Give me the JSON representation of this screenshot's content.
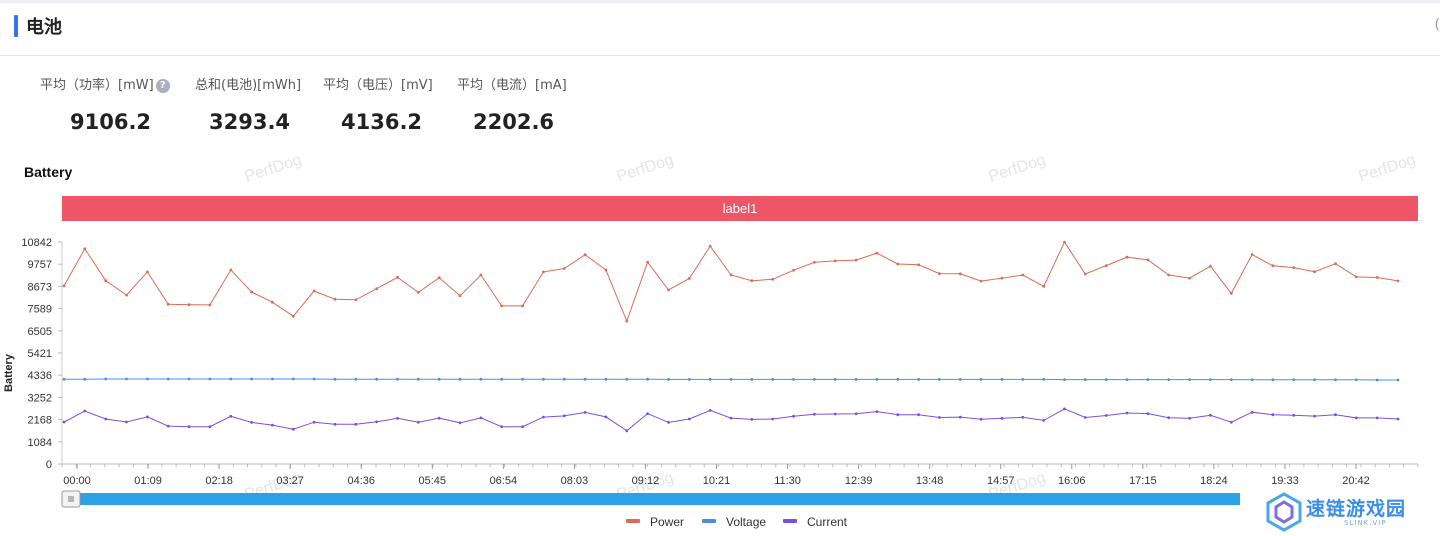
{
  "page": {
    "title": "电池"
  },
  "stats": [
    {
      "label": "平均（功率）[mW]",
      "value": "9106.2",
      "has_help": true
    },
    {
      "label": "总和(电池)[mWh]",
      "value": "3293.4"
    },
    {
      "label": "平均（电压）[mV]",
      "value": "4136.2"
    },
    {
      "label": "平均（电流）[mA]",
      "value": "2202.6"
    }
  ],
  "section_title": "Battery",
  "watermark": "PerfDog",
  "logo": {
    "name": "速链游戏园",
    "sub": "SLINK.VIP"
  },
  "chart_data": {
    "type": "line",
    "title": "",
    "ylabel": "Battery",
    "xlabel": "",
    "label_band": "label1",
    "ylim": [
      0,
      10842
    ],
    "yticks": [
      0,
      1084,
      2168,
      3252,
      4336,
      5421,
      6505,
      7589,
      8673,
      9757,
      10842
    ],
    "xticks": [
      "00:00",
      "01:09",
      "02:18",
      "03:27",
      "04:36",
      "05:45",
      "06:54",
      "08:03",
      "09:12",
      "10:21",
      "11:30",
      "12:39",
      "13:48",
      "14:57",
      "16:06",
      "17:15",
      "18:24",
      "19:33",
      "20:42"
    ],
    "legend_position": "bottom-center",
    "series": [
      {
        "name": "Power",
        "color": "#dd6b55",
        "values": [
          8700,
          10510,
          8950,
          8250,
          9380,
          7800,
          7780,
          7770,
          9480,
          8400,
          7900,
          7220,
          8450,
          8050,
          8020,
          8560,
          9120,
          8380,
          9100,
          8220,
          9230,
          7720,
          7720,
          9380,
          9550,
          10220,
          9480,
          6980,
          9860,
          8500,
          9060,
          10640,
          9230,
          8950,
          9020,
          9460,
          9850,
          9920,
          9960,
          10300,
          9770,
          9730,
          9300,
          9290,
          8930,
          9080,
          9230,
          8680,
          10830,
          9280,
          9690,
          10100,
          9970,
          9230,
          9080,
          9660,
          8330,
          10230,
          9680,
          9590,
          9390,
          9780,
          9140,
          9110,
          8940
        ]
      },
      {
        "name": "Voltage",
        "color": "#4a90e2",
        "values": [
          4140,
          4140,
          4150,
          4150,
          4150,
          4150,
          4150,
          4150,
          4150,
          4150,
          4150,
          4150,
          4150,
          4140,
          4140,
          4140,
          4140,
          4140,
          4140,
          4140,
          4140,
          4140,
          4140,
          4140,
          4140,
          4140,
          4140,
          4140,
          4140,
          4130,
          4130,
          4130,
          4130,
          4130,
          4130,
          4130,
          4130,
          4130,
          4130,
          4130,
          4130,
          4130,
          4130,
          4130,
          4130,
          4130,
          4130,
          4130,
          4120,
          4120,
          4120,
          4120,
          4120,
          4120,
          4120,
          4120,
          4120,
          4110,
          4110,
          4110,
          4110,
          4110,
          4110,
          4100,
          4100
        ]
      },
      {
        "name": "Current",
        "color": "#7b50e0",
        "values": [
          2050,
          2590,
          2200,
          2050,
          2300,
          1850,
          1820,
          1820,
          2330,
          2030,
          1900,
          1700,
          2040,
          1940,
          1940,
          2060,
          2230,
          2040,
          2240,
          2010,
          2250,
          1820,
          1820,
          2290,
          2350,
          2520,
          2300,
          1620,
          2460,
          2030,
          2200,
          2620,
          2240,
          2180,
          2200,
          2330,
          2430,
          2440,
          2450,
          2560,
          2410,
          2410,
          2270,
          2290,
          2190,
          2230,
          2280,
          2130,
          2690,
          2270,
          2370,
          2490,
          2460,
          2260,
          2230,
          2380,
          2040,
          2530,
          2410,
          2380,
          2340,
          2410,
          2250,
          2250,
          2200
        ]
      }
    ]
  }
}
